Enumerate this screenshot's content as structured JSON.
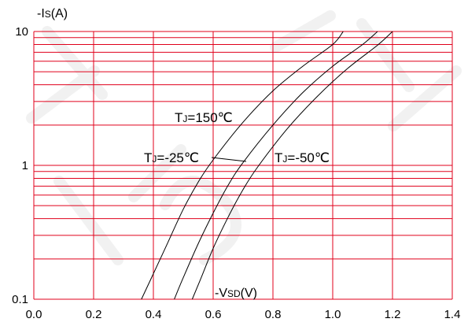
{
  "chart_data": {
    "type": "line",
    "x_scale": "linear",
    "y_scale": "log",
    "xlim": [
      0.0,
      1.4
    ],
    "ylim": [
      0.1,
      10
    ],
    "x_ticks": [
      "0.0",
      "0.2",
      "0.4",
      "0.6",
      "0.8",
      "1.0",
      "1.2",
      "1.4"
    ],
    "y_ticks": [
      "10",
      "1",
      "0.1"
    ],
    "ylabel": {
      "prefix": "-I",
      "sub": "S",
      "suffix": "(A)"
    },
    "xlabel": {
      "prefix": "-V",
      "sub": "SD",
      "suffix": "(V)"
    },
    "grid": true,
    "grid_color": "#e0001b",
    "line_color": "#000000",
    "series": [
      {
        "label": {
          "prefix": "T",
          "sub": "J",
          "suffix": "=150℃"
        },
        "points": [
          [
            0.36,
            0.1
          ],
          [
            0.4,
            0.155
          ],
          [
            0.45,
            0.27
          ],
          [
            0.5,
            0.47
          ],
          [
            0.55,
            0.75
          ],
          [
            0.6,
            1.1
          ],
          [
            0.7,
            2.1
          ],
          [
            0.8,
            3.6
          ],
          [
            0.9,
            5.5
          ],
          [
            1.0,
            8.0
          ],
          [
            1.035,
            10.0
          ]
        ]
      },
      {
        "label": {
          "prefix": "T",
          "sub": "J",
          "suffix": "=-25℃"
        },
        "points": [
          [
            0.47,
            0.1
          ],
          [
            0.5,
            0.145
          ],
          [
            0.55,
            0.26
          ],
          [
            0.6,
            0.44
          ],
          [
            0.65,
            0.71
          ],
          [
            0.7,
            1.05
          ],
          [
            0.8,
            2.0
          ],
          [
            0.9,
            3.5
          ],
          [
            1.0,
            5.5
          ],
          [
            1.1,
            8.0
          ],
          [
            1.15,
            10.0
          ]
        ]
      },
      {
        "label": {
          "prefix": "T",
          "sub": "J",
          "suffix": "=-50℃"
        },
        "points": [
          [
            0.53,
            0.1
          ],
          [
            0.56,
            0.145
          ],
          [
            0.6,
            0.24
          ],
          [
            0.65,
            0.41
          ],
          [
            0.7,
            0.66
          ],
          [
            0.75,
            0.98
          ],
          [
            0.85,
            1.9
          ],
          [
            0.95,
            3.3
          ],
          [
            1.05,
            5.3
          ],
          [
            1.15,
            7.9
          ],
          [
            1.2,
            10.0
          ]
        ]
      }
    ]
  }
}
